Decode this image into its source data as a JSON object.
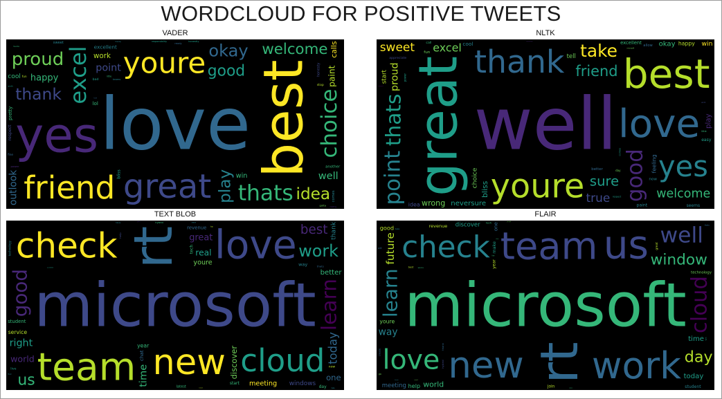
{
  "title": "WORDCLOUD FOR POSITIVE TWEETS",
  "palette": [
    "#440154",
    "#482878",
    "#3e4989",
    "#31688e",
    "#26828e",
    "#1f9e89",
    "#35b779",
    "#6ece58",
    "#b5de2b",
    "#fde725"
  ],
  "chart_data": [
    {
      "type": "wordcloud",
      "title": "VADER",
      "words": [
        {
          "text": "love",
          "weight": 100,
          "color": 3
        },
        {
          "text": "great",
          "weight": 92,
          "color": 2
        },
        {
          "text": "best",
          "weight": 72,
          "color": 9
        },
        {
          "text": "yes",
          "weight": 62,
          "color": 1
        },
        {
          "text": "youre",
          "weight": 52,
          "color": 9
        },
        {
          "text": "friend",
          "weight": 46,
          "color": 9
        },
        {
          "text": "excel",
          "weight": 38,
          "color": 5
        },
        {
          "text": "thats",
          "weight": 30,
          "color": 6
        },
        {
          "text": "thank",
          "weight": 26,
          "color": 2
        },
        {
          "text": "proud",
          "weight": 24,
          "color": 7
        },
        {
          "text": "choice",
          "weight": 24,
          "color": 6
        },
        {
          "text": "good",
          "weight": 24,
          "color": 5
        },
        {
          "text": "okay",
          "weight": 22,
          "color": 3
        },
        {
          "text": "idea",
          "weight": 21,
          "color": 8
        },
        {
          "text": "play",
          "weight": 21,
          "color": 4
        },
        {
          "text": "welcome",
          "weight": 19,
          "color": 6
        },
        {
          "text": "point",
          "weight": 18,
          "color": 2
        },
        {
          "text": "happy",
          "weight": 16,
          "color": 6
        },
        {
          "text": "paint",
          "weight": 15,
          "color": 8
        },
        {
          "text": "excellent",
          "weight": 15,
          "color": 4
        },
        {
          "text": "well",
          "weight": 15,
          "color": 6
        },
        {
          "text": "work",
          "weight": 15,
          "color": 8
        },
        {
          "text": "outlook",
          "weight": 14,
          "color": 3
        },
        {
          "text": "win",
          "weight": 14,
          "color": 6
        },
        {
          "text": "another",
          "weight": 13,
          "color": 6
        },
        {
          "text": "cool",
          "weight": 13,
          "color": 6
        },
        {
          "text": "calls",
          "weight": 13,
          "color": 9
        },
        {
          "text": "sweet",
          "weight": 12,
          "color": 4
        },
        {
          "text": "teams",
          "weight": 12,
          "color": 4
        },
        {
          "text": "lol",
          "weight": 12,
          "color": 6
        },
        {
          "text": "bliss",
          "weight": 12,
          "color": 5
        },
        {
          "text": "ready",
          "weight": 12,
          "color": 3
        },
        {
          "text": "stop",
          "weight": 11,
          "color": 8
        },
        {
          "text": "honestly",
          "weight": 10,
          "color": 5
        },
        {
          "text": "bad",
          "weight": 11,
          "color": 5
        },
        {
          "text": "pretty",
          "weight": 11,
          "color": 6
        },
        {
          "text": "power",
          "weight": 11,
          "color": 1
        },
        {
          "text": "respect",
          "weight": 10,
          "color": 2
        },
        {
          "text": "fine",
          "weight": 10,
          "color": 3
        },
        {
          "text": "gotta",
          "weight": 10,
          "color": 7
        },
        {
          "text": "friendly",
          "weight": 10,
          "color": 4
        },
        {
          "text": "responsibility",
          "weight": 11,
          "color": 5
        },
        {
          "text": "honesty",
          "weight": 10,
          "color": 2
        },
        {
          "text": "little",
          "weight": 10,
          "color": 6
        },
        {
          "text": "favorite",
          "weight": 10,
          "color": 6
        },
        {
          "text": "fun",
          "weight": 10,
          "color": 8
        },
        {
          "text": "comes",
          "weight": 10,
          "color": 4
        },
        {
          "text": "worth",
          "weight": 10,
          "color": 5
        },
        {
          "text": "luck",
          "weight": 10,
          "color": 3
        },
        {
          "text": "meeting",
          "weight": 9,
          "color": 1
        }
      ]
    },
    {
      "type": "wordcloud",
      "title": "NLTK",
      "words": [
        {
          "text": "well",
          "weight": 100,
          "color": 1
        },
        {
          "text": "love",
          "weight": 90,
          "color": 3
        },
        {
          "text": "great",
          "weight": 70,
          "color": 5
        },
        {
          "text": "best",
          "weight": 62,
          "color": 8
        },
        {
          "text": "youre",
          "weight": 40,
          "color": 8
        },
        {
          "text": "thank",
          "weight": 38,
          "color": 3
        },
        {
          "text": "good",
          "weight": 36,
          "color": 1
        },
        {
          "text": "yes",
          "weight": 34,
          "color": 4
        },
        {
          "text": "welcome",
          "weight": 28,
          "color": 6
        },
        {
          "text": "friend",
          "weight": 28,
          "color": 5
        },
        {
          "text": "thats",
          "weight": 28,
          "color": 5
        },
        {
          "text": "take",
          "weight": 28,
          "color": 9
        },
        {
          "text": "sure",
          "weight": 26,
          "color": 5
        },
        {
          "text": "excel",
          "weight": 25,
          "color": 7
        },
        {
          "text": "point",
          "weight": 24,
          "color": 4
        },
        {
          "text": "true",
          "weight": 22,
          "color": 2
        },
        {
          "text": "sweet",
          "weight": 22,
          "color": 9
        },
        {
          "text": "neversure",
          "weight": 22,
          "color": 5
        },
        {
          "text": "proud",
          "weight": 22,
          "color": 8
        },
        {
          "text": "wrong",
          "weight": 20,
          "color": 7
        },
        {
          "text": "okay",
          "weight": 18,
          "color": 6
        },
        {
          "text": "choice",
          "weight": 16,
          "color": 7
        },
        {
          "text": "excellent",
          "weight": 17,
          "color": 6
        },
        {
          "text": "happy",
          "weight": 16,
          "color": 8
        },
        {
          "text": "win",
          "weight": 16,
          "color": 9
        },
        {
          "text": "paint",
          "weight": 15,
          "color": 4
        },
        {
          "text": "bliss",
          "weight": 13,
          "color": 5
        },
        {
          "text": "better",
          "weight": 13,
          "color": 3
        },
        {
          "text": "seems",
          "weight": 12,
          "color": 4
        },
        {
          "text": "tell",
          "weight": 12,
          "color": 7
        },
        {
          "text": "play",
          "weight": 12,
          "color": 1
        },
        {
          "text": "idea",
          "weight": 11,
          "color": 2
        },
        {
          "text": "easy",
          "weight": 10,
          "color": 5
        },
        {
          "text": "cool",
          "weight": 10,
          "color": 4
        },
        {
          "text": "start",
          "weight": 10,
          "color": 8
        },
        {
          "text": "allow",
          "weight": 10,
          "color": 3
        },
        {
          "text": "appreciate",
          "weight": 9,
          "color": 2
        },
        {
          "text": "respect",
          "weight": 9,
          "color": 5
        },
        {
          "text": "feeling",
          "weight": 9,
          "color": 3
        },
        {
          "text": "now",
          "weight": 9,
          "color": 4
        },
        {
          "text": "microsoft",
          "weight": 9,
          "color": 7
        },
        {
          "text": "fun",
          "weight": 9,
          "color": 7
        },
        {
          "text": "power",
          "weight": 9,
          "color": 5
        },
        {
          "text": "call",
          "weight": 9,
          "color": 6
        },
        {
          "text": "day",
          "weight": 9,
          "color": 7
        },
        {
          "text": "comes",
          "weight": 8,
          "color": 5
        },
        {
          "text": "work",
          "weight": 8,
          "color": 2
        },
        {
          "text": "amazing",
          "weight": 8,
          "color": 1
        },
        {
          "text": "little",
          "weight": 9,
          "color": 6
        },
        {
          "text": "support",
          "weight": 8,
          "color": 0
        }
      ]
    },
    {
      "type": "wordcloud",
      "title": "TEXT BLOB",
      "words": [
        {
          "text": "microsoft",
          "weight": 100,
          "color": 2
        },
        {
          "text": "new",
          "weight": 80,
          "color": 9
        },
        {
          "text": "rt",
          "weight": 70,
          "color": 3
        },
        {
          "text": "love",
          "weight": 60,
          "color": 2
        },
        {
          "text": "team",
          "weight": 58,
          "color": 8
        },
        {
          "text": "check",
          "weight": 52,
          "color": 9
        },
        {
          "text": "learn",
          "weight": 52,
          "color": 0
        },
        {
          "text": "cloud",
          "weight": 46,
          "color": 5
        },
        {
          "text": "work",
          "weight": 40,
          "color": 5
        },
        {
          "text": "best",
          "weight": 36,
          "color": 1
        },
        {
          "text": "good",
          "weight": 26,
          "color": 1
        },
        {
          "text": "great",
          "weight": 24,
          "color": 1
        },
        {
          "text": "right",
          "weight": 22,
          "color": 5
        },
        {
          "text": "meeting",
          "weight": 21,
          "color": 9
        },
        {
          "text": "today",
          "weight": 21,
          "color": 3
        },
        {
          "text": "world",
          "weight": 19,
          "color": 1
        },
        {
          "text": "windows",
          "weight": 19,
          "color": 2
        },
        {
          "text": "better",
          "weight": 18,
          "color": 6
        },
        {
          "text": "discover",
          "weight": 17,
          "color": 7
        },
        {
          "text": "youre",
          "weight": 17,
          "color": 7
        },
        {
          "text": "us",
          "weight": 16,
          "color": 6
        },
        {
          "text": "real",
          "weight": 15,
          "color": 5
        },
        {
          "text": "time",
          "weight": 15,
          "color": 6
        },
        {
          "text": "revenue",
          "weight": 14,
          "color": 3
        },
        {
          "text": "student",
          "weight": 14,
          "color": 6
        },
        {
          "text": "thank",
          "weight": 13,
          "color": 4
        },
        {
          "text": "one",
          "weight": 14,
          "color": 3
        },
        {
          "text": "service",
          "weight": 13,
          "color": 8
        },
        {
          "text": "year",
          "weight": 13,
          "color": 6
        },
        {
          "text": "way",
          "weight": 13,
          "color": 4
        },
        {
          "text": "chat",
          "weight": 12,
          "color": 3
        },
        {
          "text": "start",
          "weight": 12,
          "color": 6
        },
        {
          "text": "day",
          "weight": 12,
          "color": 6
        },
        {
          "text": "latest",
          "weight": 12,
          "color": 6
        },
        {
          "text": "tech",
          "weight": 12,
          "color": 6
        },
        {
          "text": "hybrid",
          "weight": 12,
          "color": 6
        },
        {
          "text": "thats",
          "weight": 11,
          "color": 3
        },
        {
          "text": "live",
          "weight": 11,
          "color": 5
        },
        {
          "text": "help",
          "weight": 11,
          "color": 2
        },
        {
          "text": "now",
          "weight": 11,
          "color": 8
        },
        {
          "text": "make",
          "weight": 11,
          "color": 4
        },
        {
          "text": "future",
          "weight": 11,
          "color": 4
        },
        {
          "text": "technology",
          "weight": 9,
          "color": 4
        },
        {
          "text": "experience",
          "weight": 8,
          "color": 2
        },
        {
          "text": "available",
          "weight": 8,
          "color": 5
        },
        {
          "text": "find",
          "weight": 9,
          "color": 4
        },
        {
          "text": "take",
          "weight": 9,
          "color": 4
        },
        {
          "text": "top",
          "weight": 9,
          "color": 8
        },
        {
          "text": "need",
          "weight": 8,
          "color": 8
        },
        {
          "text": "space",
          "weight": 8,
          "color": 1
        }
      ]
    },
    {
      "type": "wordcloud",
      "title": "FLAIR",
      "words": [
        {
          "text": "microsoft",
          "weight": 100,
          "color": 6
        },
        {
          "text": "team",
          "weight": 70,
          "color": 2
        },
        {
          "text": "rt",
          "weight": 68,
          "color": 3
        },
        {
          "text": "new",
          "weight": 68,
          "color": 3
        },
        {
          "text": "us",
          "weight": 60,
          "color": 2
        },
        {
          "text": "work",
          "weight": 56,
          "color": 3
        },
        {
          "text": "cloud",
          "weight": 44,
          "color": 0
        },
        {
          "text": "check",
          "weight": 36,
          "color": 4
        },
        {
          "text": "window",
          "weight": 36,
          "color": 6
        },
        {
          "text": "love",
          "weight": 32,
          "color": 6
        },
        {
          "text": "learn",
          "weight": 32,
          "color": 4
        },
        {
          "text": "well",
          "weight": 30,
          "color": 2
        },
        {
          "text": "day",
          "weight": 30,
          "color": 8
        },
        {
          "text": "way",
          "weight": 26,
          "color": 4
        },
        {
          "text": "future",
          "weight": 24,
          "color": 8
        },
        {
          "text": "world",
          "weight": 24,
          "color": 6
        },
        {
          "text": "discover",
          "weight": 22,
          "color": 5
        },
        {
          "text": "today",
          "weight": 22,
          "color": 5
        },
        {
          "text": "one",
          "weight": 22,
          "color": 3
        },
        {
          "text": "meeting",
          "weight": 18,
          "color": 3
        },
        {
          "text": "time",
          "weight": 18,
          "color": 5
        },
        {
          "text": "help",
          "weight": 17,
          "color": 6
        },
        {
          "text": "make",
          "weight": 16,
          "color": 5
        },
        {
          "text": "youre",
          "weight": 16,
          "color": 7
        },
        {
          "text": "revenue",
          "weight": 16,
          "color": 8
        },
        {
          "text": "student",
          "weight": 15,
          "color": 4
        },
        {
          "text": "year",
          "weight": 15,
          "color": 8
        },
        {
          "text": "good",
          "weight": 14,
          "color": 8
        },
        {
          "text": "join",
          "weight": 14,
          "color": 8
        },
        {
          "text": "technology",
          "weight": 13,
          "color": 7
        },
        {
          "text": "thank",
          "weight": 13,
          "color": 3
        },
        {
          "text": "best",
          "weight": 12,
          "color": 8
        },
        {
          "text": "tech",
          "weight": 12,
          "color": 6
        },
        {
          "text": "take",
          "weight": 12,
          "color": 4
        },
        {
          "text": "great",
          "weight": 12,
          "color": 8
        },
        {
          "text": "service",
          "weight": 11,
          "color": 6
        },
        {
          "text": "thats",
          "weight": 11,
          "color": 3
        },
        {
          "text": "will",
          "weight": 11,
          "color": 3
        },
        {
          "text": "hybrid",
          "weight": 11,
          "color": 2
        },
        {
          "text": "space",
          "weight": 10,
          "color": 6
        },
        {
          "text": "people",
          "weight": 10,
          "color": 7
        },
        {
          "text": "live",
          "weight": 10,
          "color": 6
        },
        {
          "text": "create",
          "weight": 10,
          "color": 3
        },
        {
          "text": "share",
          "weight": 10,
          "color": 6
        },
        {
          "text": "go",
          "weight": 10,
          "color": 7
        },
        {
          "text": "need",
          "weight": 9,
          "color": 7
        },
        {
          "text": "right",
          "weight": 9,
          "color": 5
        },
        {
          "text": "know",
          "weight": 9,
          "color": 4
        },
        {
          "text": "change",
          "weight": 8,
          "color": 3
        },
        {
          "text": "expert",
          "weight": 8,
          "color": 7
        }
      ]
    }
  ]
}
